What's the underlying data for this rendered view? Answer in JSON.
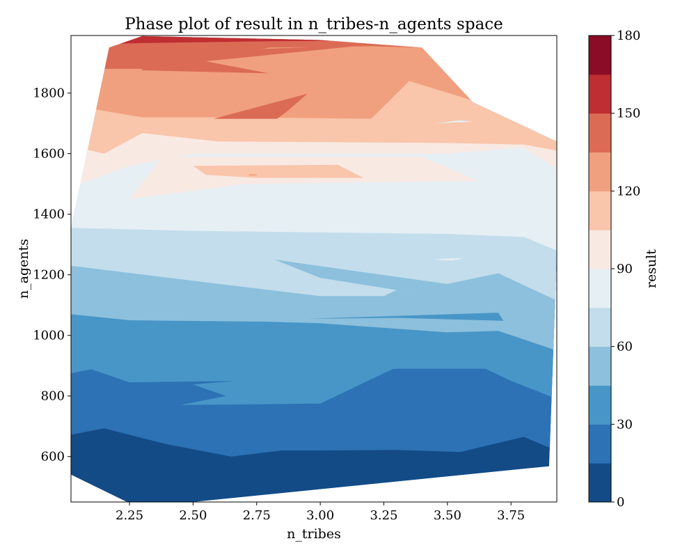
{
  "chart_data": {
    "type": "contour",
    "title": "Phase plot of result in n_tribes-n_agents space",
    "xlabel": "n_tribes",
    "ylabel": "n_agents",
    "xlim": [
      2.02,
      3.93
    ],
    "ylim": [
      450,
      1990
    ],
    "x_ticks": [
      "2.25",
      "2.50",
      "2.75",
      "3.00",
      "3.25",
      "3.50",
      "3.75"
    ],
    "x_tick_values": [
      2.25,
      2.5,
      2.75,
      3.0,
      3.25,
      3.5,
      3.75
    ],
    "y_ticks": [
      "600",
      "800",
      "1000",
      "1200",
      "1400",
      "1600",
      "1800"
    ],
    "y_tick_values": [
      600,
      800,
      1000,
      1200,
      1400,
      1600,
      1800
    ],
    "colorbar": {
      "label": "result",
      "levels": [
        0,
        15,
        30,
        45,
        60,
        75,
        90,
        105,
        120,
        135,
        150,
        165,
        180
      ],
      "tick_labels": [
        "0",
        "30",
        "60",
        "90",
        "120",
        "150",
        "180"
      ],
      "tick_values": [
        0,
        30,
        60,
        90,
        120,
        150,
        180
      ],
      "colors": [
        "#134b87",
        "#2c72b5",
        "#4896c7",
        "#8cc0dd",
        "#c3ddec",
        "#e6eff4",
        "#f9e9e3",
        "#f9c5ab",
        "#f0a07e",
        "#db6b55",
        "#bf2e32",
        "#8a0c26"
      ]
    },
    "data_boundary": [
      [
        2.02,
        540
      ],
      [
        2.24,
        450
      ],
      [
        2.5,
        450
      ],
      [
        3.9,
        568
      ],
      [
        3.93,
        1270
      ],
      [
        3.93,
        1640
      ],
      [
        3.6,
        1770
      ],
      [
        3.4,
        1950
      ],
      [
        3.0,
        1975
      ],
      [
        2.3,
        1988
      ],
      [
        2.17,
        1950
      ],
      [
        2.02,
        1350
      ]
    ],
    "bands": [
      {
        "level": 0,
        "range": [
          0,
          15
        ],
        "upper": [
          [
            2.02,
            672
          ],
          [
            2.15,
            693
          ],
          [
            2.4,
            640
          ],
          [
            2.65,
            600
          ],
          [
            2.85,
            620
          ],
          [
            3.0,
            620
          ],
          [
            3.3,
            622
          ],
          [
            3.55,
            615
          ],
          [
            3.8,
            665
          ],
          [
            3.9,
            630
          ],
          [
            3.93,
            630
          ]
        ]
      },
      {
        "level": 1,
        "range": [
          15,
          30
        ],
        "upper": [
          [
            2.02,
            875
          ],
          [
            2.1,
            888
          ],
          [
            2.25,
            845
          ],
          [
            2.7,
            850
          ],
          [
            3.0,
            865
          ],
          [
            3.3,
            890
          ],
          [
            3.65,
            890
          ],
          [
            3.75,
            850
          ],
          [
            3.93,
            790
          ]
        ]
      },
      {
        "level": 2,
        "range": [
          30,
          45
        ],
        "upper": [
          [
            2.02,
            1070
          ],
          [
            2.25,
            1050
          ],
          [
            2.8,
            1045
          ],
          [
            3.0,
            1040
          ],
          [
            3.5,
            1010
          ],
          [
            3.7,
            1015
          ],
          [
            3.93,
            950
          ]
        ]
      },
      {
        "level": 3,
        "range": [
          45,
          60
        ],
        "upper": [
          [
            2.02,
            1230
          ],
          [
            2.6,
            1170
          ],
          [
            3.0,
            1130
          ],
          [
            3.25,
            1130
          ],
          [
            3.3,
            1150
          ],
          [
            3.5,
            1170
          ],
          [
            3.7,
            1205
          ],
          [
            3.93,
            1115
          ]
        ]
      },
      {
        "level": 4,
        "range": [
          60,
          75
        ],
        "upper": [
          [
            2.02,
            1355
          ],
          [
            2.5,
            1345
          ],
          [
            3.0,
            1340
          ],
          [
            3.5,
            1335
          ],
          [
            3.8,
            1325
          ],
          [
            3.93,
            1280
          ]
        ]
      },
      {
        "level": 5,
        "range": [
          75,
          90
        ],
        "upper": [
          [
            2.02,
            1490
          ],
          [
            2.25,
            1560
          ],
          [
            2.5,
            1600
          ],
          [
            3.0,
            1600
          ],
          [
            3.5,
            1600
          ],
          [
            3.8,
            1620
          ],
          [
            3.93,
            1550
          ]
        ]
      },
      {
        "level": 6,
        "range": [
          90,
          105
        ],
        "upper": [
          [
            2.02,
            1625
          ],
          [
            2.15,
            1600
          ],
          [
            2.3,
            1668
          ],
          [
            2.6,
            1640
          ],
          [
            3.0,
            1638
          ],
          [
            3.5,
            1635
          ],
          [
            3.8,
            1630
          ],
          [
            3.93,
            1610
          ]
        ]
      },
      {
        "level": 7,
        "range": [
          105,
          120
        ],
        "upper": [
          [
            2.02,
            1760
          ],
          [
            2.3,
            1720
          ],
          [
            2.7,
            1720
          ],
          [
            3.2,
            1715
          ],
          [
            3.35,
            1840
          ],
          [
            3.6,
            1775
          ],
          [
            3.93,
            1640
          ]
        ]
      },
      {
        "level": 8,
        "range": [
          120,
          135
        ],
        "upper": [
          [
            2.02,
            1880
          ],
          [
            2.4,
            1880
          ],
          [
            2.8,
            1950
          ],
          [
            3.2,
            1955
          ],
          [
            3.4,
            1950
          ],
          [
            3.93,
            1950
          ]
        ]
      },
      {
        "level": 9,
        "range": [
          135,
          150
        ],
        "upper": [
          [
            2.02,
            1960
          ],
          [
            2.3,
            1965
          ],
          [
            2.7,
            1970
          ],
          [
            3.3,
            1975
          ],
          [
            3.93,
            1975
          ]
        ]
      },
      {
        "level": 10,
        "range": [
          150,
          165
        ],
        "upper": [
          [
            2.02,
            1995
          ],
          [
            3.93,
            1995
          ]
        ]
      }
    ],
    "islands": [
      {
        "level": 2,
        "polygon": [
          [
            2.45,
            770
          ],
          [
            2.63,
            800
          ],
          [
            2.5,
            838
          ],
          [
            3.3,
            895
          ],
          [
            3.0,
            775
          ]
        ]
      },
      {
        "level": 3,
        "polygon": [
          [
            2.82,
            1250
          ],
          [
            3.0,
            1190
          ],
          [
            3.3,
            1150
          ],
          [
            3.5,
            1170
          ],
          [
            3.2,
            1205
          ]
        ]
      },
      {
        "level": 2,
        "polygon": [
          [
            2.95,
            1055
          ],
          [
            3.7,
            1075
          ],
          [
            3.72,
            1048
          ],
          [
            3.3,
            1058
          ]
        ]
      },
      {
        "level": 5,
        "polygon": [
          [
            2.25,
            1380
          ],
          [
            3.0,
            1450
          ],
          [
            3.55,
            1465
          ],
          [
            3.35,
            1420
          ],
          [
            3.82,
            1415
          ],
          [
            3.3,
            1400
          ]
        ]
      },
      {
        "level": 6,
        "polygon": [
          [
            2.25,
            1450
          ],
          [
            2.38,
            1590
          ],
          [
            3.4,
            1590
          ],
          [
            3.62,
            1510
          ],
          [
            2.7,
            1500
          ]
        ]
      },
      {
        "level": 7,
        "polygon": [
          [
            2.5,
            1560
          ],
          [
            2.55,
            1530
          ],
          [
            2.75,
            1520
          ],
          [
            3.17,
            1520
          ],
          [
            3.07,
            1563
          ]
        ]
      },
      {
        "level": 9,
        "polygon": [
          [
            2.58,
            1715
          ],
          [
            2.95,
            1798
          ],
          [
            2.87,
            1740
          ],
          [
            2.83,
            1715
          ]
        ]
      },
      {
        "level": 9,
        "polygon": [
          [
            2.3,
            1875
          ],
          [
            2.8,
            1865
          ],
          [
            2.55,
            1905
          ],
          [
            3.2,
            1960
          ],
          [
            2.3,
            1930
          ]
        ]
      },
      {
        "level": 5,
        "polygon": [
          [
            3.45,
            1250
          ],
          [
            3.52,
            1247
          ],
          [
            3.57,
            1255
          ],
          [
            3.48,
            1253
          ]
        ]
      },
      {
        "level": 5,
        "polygon": [
          [
            3.45,
            1700
          ],
          [
            3.55,
            1710
          ],
          [
            3.6,
            1705
          ],
          [
            3.5,
            1702
          ]
        ]
      },
      {
        "level": 8,
        "polygon": [
          [
            2.72,
            1528
          ],
          [
            2.75,
            1528
          ],
          [
            2.75,
            1532
          ],
          [
            2.72,
            1532
          ]
        ]
      }
    ]
  }
}
